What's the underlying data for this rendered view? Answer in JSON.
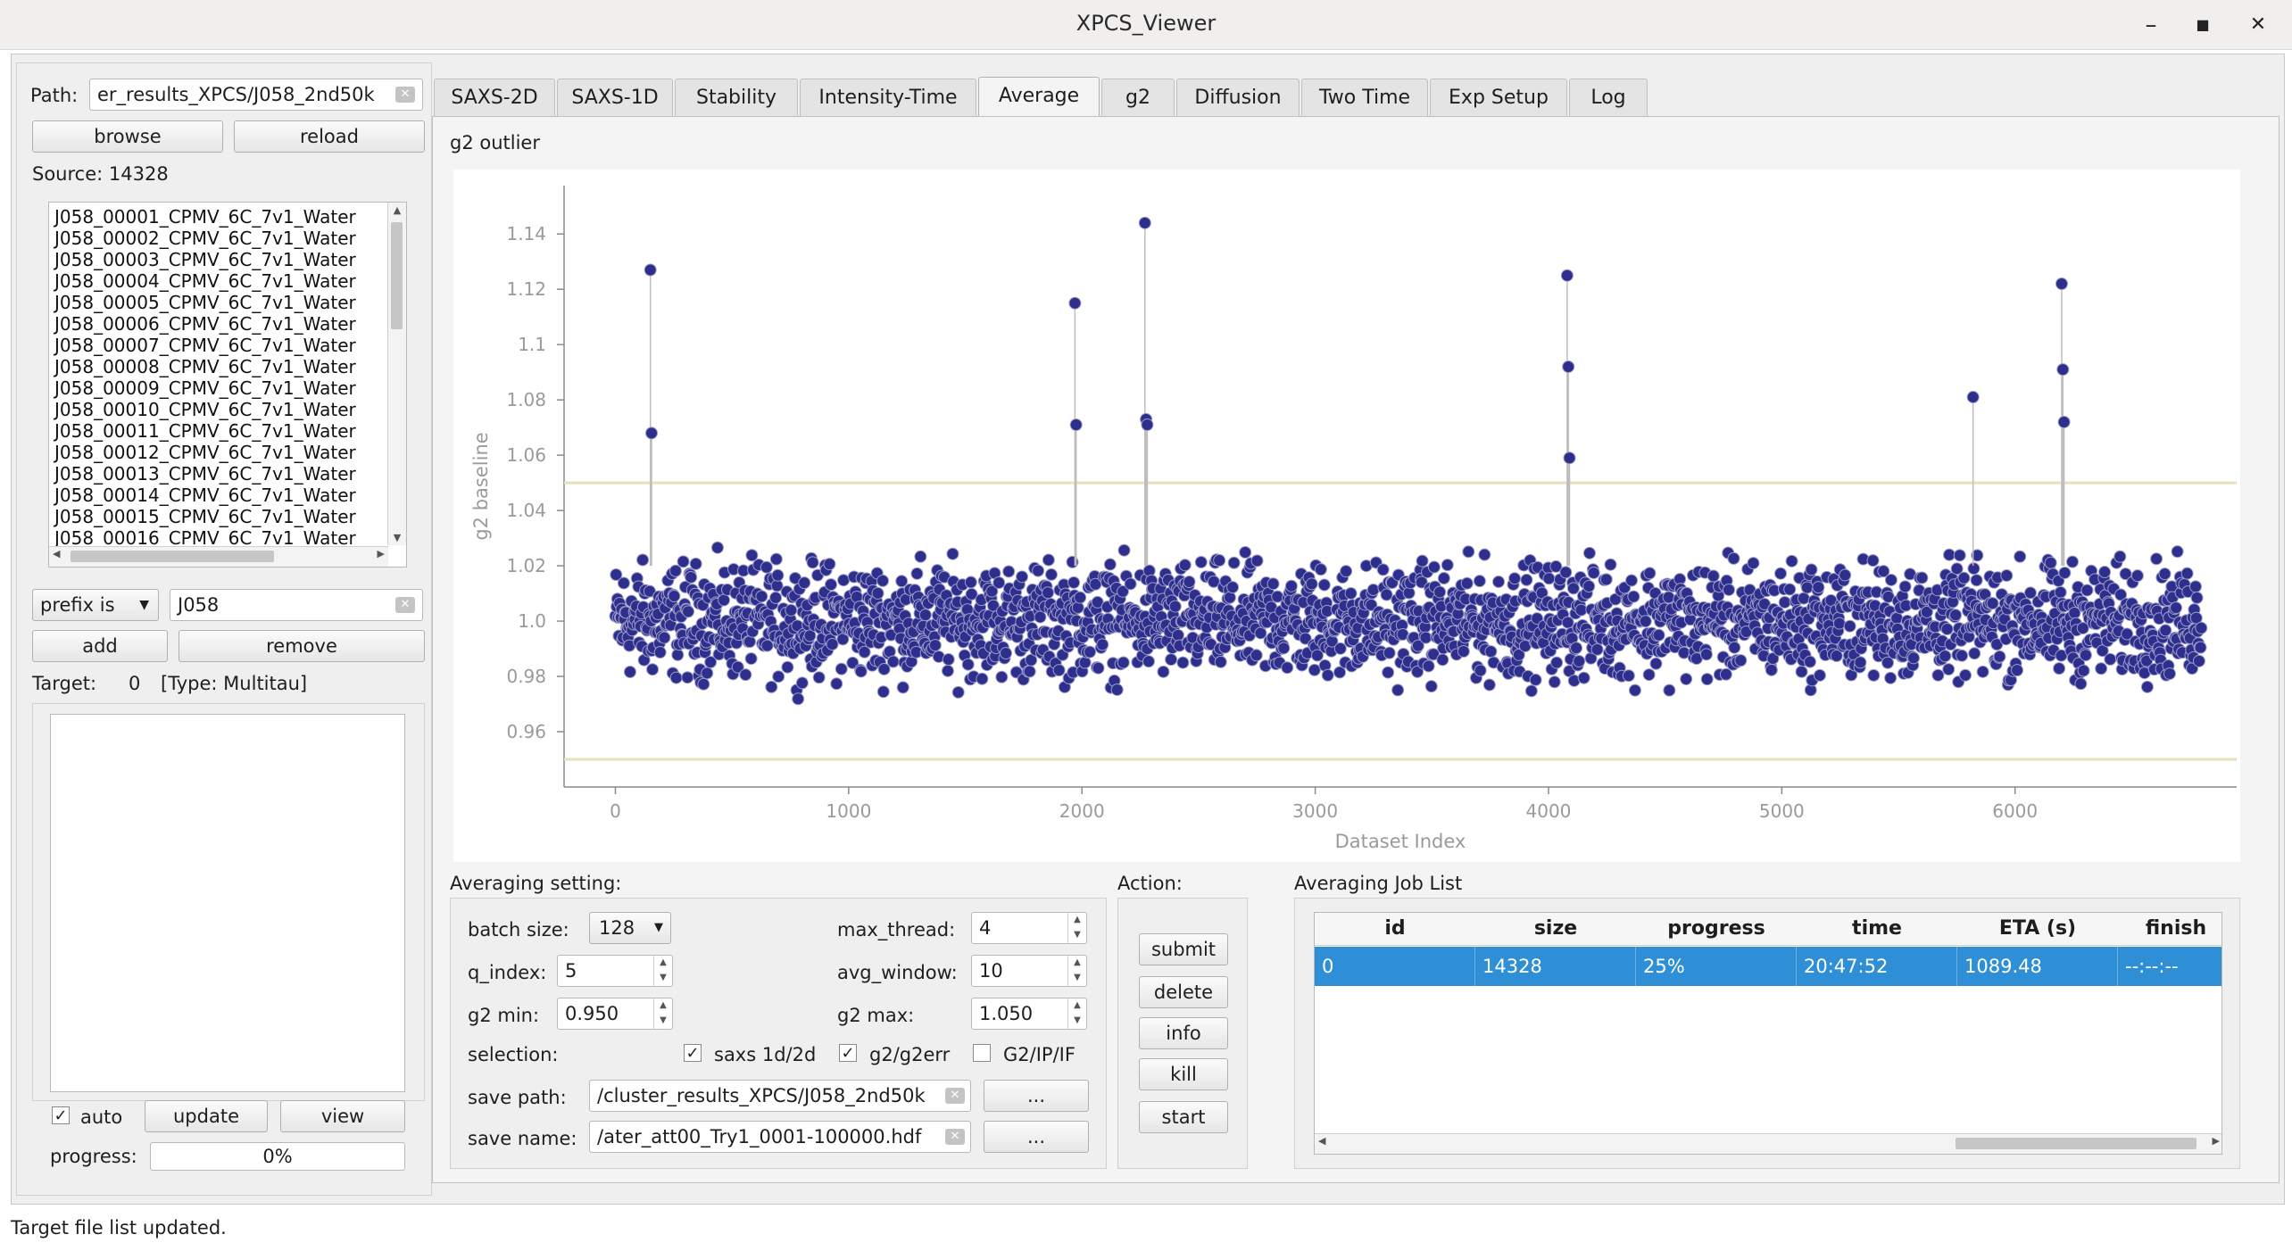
{
  "window": {
    "title": "XPCS_Viewer",
    "minimize_glyph": "–",
    "maximize_glyph": "■",
    "close_glyph": "✕"
  },
  "left": {
    "path_label": "Path:",
    "path_value": "er_results_XPCS/J058_2nd50k",
    "browse_label": "browse",
    "reload_label": "reload",
    "source_text": "Source: 14328",
    "files": [
      "J058_00001_CPMV_6C_7v1_Water",
      "J058_00002_CPMV_6C_7v1_Water",
      "J058_00003_CPMV_6C_7v1_Water",
      "J058_00004_CPMV_6C_7v1_Water",
      "J058_00005_CPMV_6C_7v1_Water",
      "J058_00006_CPMV_6C_7v1_Water",
      "J058_00007_CPMV_6C_7v1_Water",
      "J058_00008_CPMV_6C_7v1_Water",
      "J058_00009_CPMV_6C_7v1_Water",
      "J058_00010_CPMV_6C_7v1_Water",
      "J058_00011_CPMV_6C_7v1_Water",
      "J058_00012_CPMV_6C_7v1_Water",
      "J058_00013_CPMV_6C_7v1_Water",
      "J058_00014_CPMV_6C_7v1_Water",
      "J058_00015_CPMV_6C_7v1_Water",
      "J058_00016_CPMV_6C_7v1_Water"
    ],
    "filter_mode": "prefix is",
    "filter_value": "J058",
    "add_label": "add",
    "remove_label": "remove",
    "target_label": "Target:",
    "target_count": "0",
    "target_type": "[Type: Multitau]",
    "auto_label": "auto",
    "auto_checked": true,
    "update_label": "update",
    "view_label": "view",
    "progress_label": "progress:",
    "progress_value": "0%",
    "progress_fraction": 0
  },
  "tabs": [
    "SAXS-2D",
    "SAXS-1D",
    "Stability",
    "Intensity-Time",
    "Average",
    "g2",
    "Diffusion",
    "Two Time",
    "Exp Setup",
    "Log"
  ],
  "active_tab": "Average",
  "plot": {
    "title": "g2 outlier",
    "colors": {
      "points": "#2e2f8c",
      "threshold": "#e6e2b6",
      "stems": "#bdbdbd"
    }
  },
  "chart_data": {
    "type": "scatter",
    "title": "g2 outlier",
    "xlabel": "Dataset Index",
    "ylabel": "g2 baseline",
    "xlim": [
      -220,
      6950
    ],
    "ylim": [
      0.94,
      1.1575
    ],
    "xticks": [
      0,
      1000,
      2000,
      3000,
      4000,
      5000,
      6000
    ],
    "yticks": [
      0.96,
      0.98,
      1.0,
      1.02,
      1.04,
      1.06,
      1.08,
      1.1,
      1.12,
      1.14
    ],
    "ytick_labels": [
      "0.96",
      "0.98",
      "1.0",
      "1.02",
      "1.04",
      "1.06",
      "1.08",
      "1.1",
      "1.12",
      "1.14"
    ],
    "thresholds": [
      1.05,
      0.95
    ],
    "n_points": 6800,
    "central_value": 1.0,
    "band_halfwidth": 0.022,
    "outliers": [
      {
        "x": 150,
        "y": 1.127
      },
      {
        "x": 155,
        "y": 1.068
      },
      {
        "x": 1970,
        "y": 1.115
      },
      {
        "x": 1975,
        "y": 1.071
      },
      {
        "x": 2270,
        "y": 1.144
      },
      {
        "x": 2275,
        "y": 1.073
      },
      {
        "x": 2280,
        "y": 1.071
      },
      {
        "x": 4080,
        "y": 1.125
      },
      {
        "x": 4085,
        "y": 1.092
      },
      {
        "x": 4090,
        "y": 1.059
      },
      {
        "x": 5820,
        "y": 1.081
      },
      {
        "x": 6200,
        "y": 1.122
      },
      {
        "x": 6205,
        "y": 1.091
      },
      {
        "x": 6210,
        "y": 1.072
      }
    ],
    "grid": false,
    "legend": "none"
  },
  "averaging": {
    "header": "Averaging setting:",
    "batch_size_label": "batch size:",
    "batch_size_value": "128",
    "max_thread_label": "max_thread:",
    "max_thread_value": "4",
    "q_index_label": "q_index:",
    "q_index_value": "5",
    "avg_window_label": "avg_window:",
    "avg_window_value": "10",
    "g2_min_label": "g2 min:",
    "g2_min_value": "0.950",
    "g2_max_label": "g2 max:",
    "g2_max_value": "1.050",
    "selection_label": "selection:",
    "saxs_label": "saxs 1d/2d",
    "saxs_checked": true,
    "g2err_label": "g2/g2err",
    "g2err_checked": true,
    "g2ipif_label": "G2/IP/IF",
    "g2ipif_checked": false,
    "save_path_label": "save path:",
    "save_path_value": "/cluster_results_XPCS/J058_2nd50k",
    "save_name_label": "save name:",
    "save_name_value": "/ater_att00_Try1_0001-100000.hdf",
    "dots_label": "..."
  },
  "action": {
    "header": "Action:",
    "submit": "submit",
    "delete": "delete",
    "info": "info",
    "kill": "kill",
    "start": "start"
  },
  "jobs": {
    "header": "Averaging Job List",
    "columns": [
      "id",
      "size",
      "progress",
      "time",
      "ETA (s)",
      "finish"
    ],
    "rows": [
      [
        "0",
        "14328",
        "25%",
        "20:47:52",
        "1089.48",
        "--:--:--"
      ]
    ],
    "selected_color": "#2f8fd6"
  },
  "status_bar": "Target file list updated."
}
